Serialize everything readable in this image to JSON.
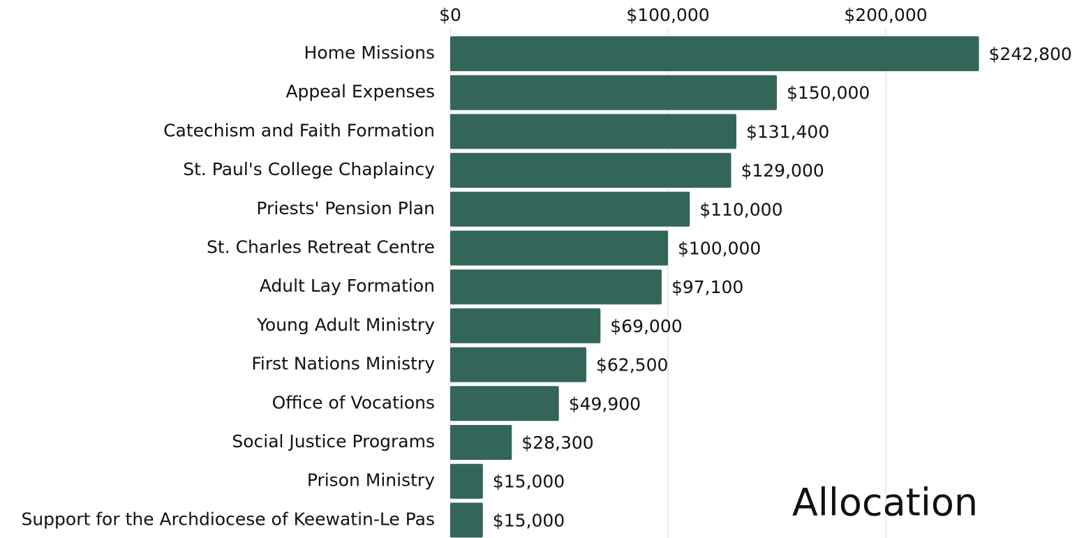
{
  "chart_data": {
    "type": "bar",
    "orientation": "horizontal",
    "title": "Allocation",
    "categories": [
      "Home Missions",
      "Appeal Expenses",
      "Catechism and Faith Formation",
      "St. Paul's College Chaplaincy",
      "Priests' Pension Plan",
      "St. Charles Retreat Centre",
      "Adult Lay Formation",
      "Young Adult Ministry",
      "First Nations Ministry",
      "Office of Vocations",
      "Social Justice Programs",
      "Prison Ministry",
      "Support for the Archdiocese of Keewatin-Le Pas"
    ],
    "values": [
      242800,
      150000,
      131400,
      129000,
      110000,
      100000,
      97100,
      69000,
      62500,
      49900,
      28300,
      15000,
      15000
    ],
    "value_labels": [
      "$242,800",
      "$150,000",
      "$131,400",
      "$129,000",
      "$110,000",
      "$100,000",
      "$97,100",
      "$69,000",
      "$62,500",
      "$49,900",
      "$28,300",
      "$15,000",
      "$15,000"
    ],
    "color": "#336659",
    "xlim": [
      0,
      250000
    ],
    "xticks": [
      {
        "value": 0,
        "label": "$0"
      },
      {
        "value": 100000,
        "label": "$100,000"
      },
      {
        "value": 200000,
        "label": "$200,000"
      }
    ],
    "grid": true
  }
}
